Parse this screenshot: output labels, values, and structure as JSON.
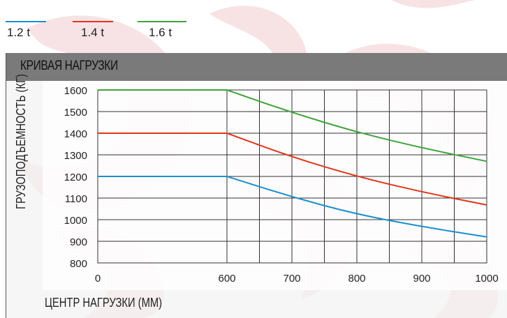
{
  "chart_data": {
    "type": "line",
    "title": "КРИВАЯ НАГРУЗКИ",
    "xlabel": "ЦЕНТР НАГРУЗКИ (ММ)",
    "ylabel": "ГРУЗОПОДЪЕМНОСТЬ (КГ)",
    "x_ticks": [
      0,
      600,
      700,
      800,
      900,
      1000
    ],
    "y_ticks": [
      800,
      900,
      1000,
      1100,
      1200,
      1300,
      1400,
      1500,
      1600
    ],
    "ylim": [
      800,
      1600
    ],
    "grid": true,
    "legend_position": "top-left",
    "series": [
      {
        "name": "1.2 t",
        "color": "#1a8fd0",
        "points": [
          [
            0,
            1200
          ],
          [
            600,
            1200
          ],
          [
            700,
            1105
          ],
          [
            800,
            1025
          ],
          [
            900,
            968
          ],
          [
            1000,
            920
          ]
        ]
      },
      {
        "name": "1.4 t",
        "color": "#e0361c",
        "points": [
          [
            0,
            1400
          ],
          [
            600,
            1400
          ],
          [
            700,
            1290
          ],
          [
            800,
            1200
          ],
          [
            900,
            1128
          ],
          [
            1000,
            1068
          ]
        ]
      },
      {
        "name": "1.6 t",
        "color": "#3fa33a",
        "points": [
          [
            0,
            1600
          ],
          [
            600,
            1600
          ],
          [
            700,
            1495
          ],
          [
            800,
            1405
          ],
          [
            900,
            1332
          ],
          [
            1000,
            1270
          ]
        ]
      }
    ]
  }
}
